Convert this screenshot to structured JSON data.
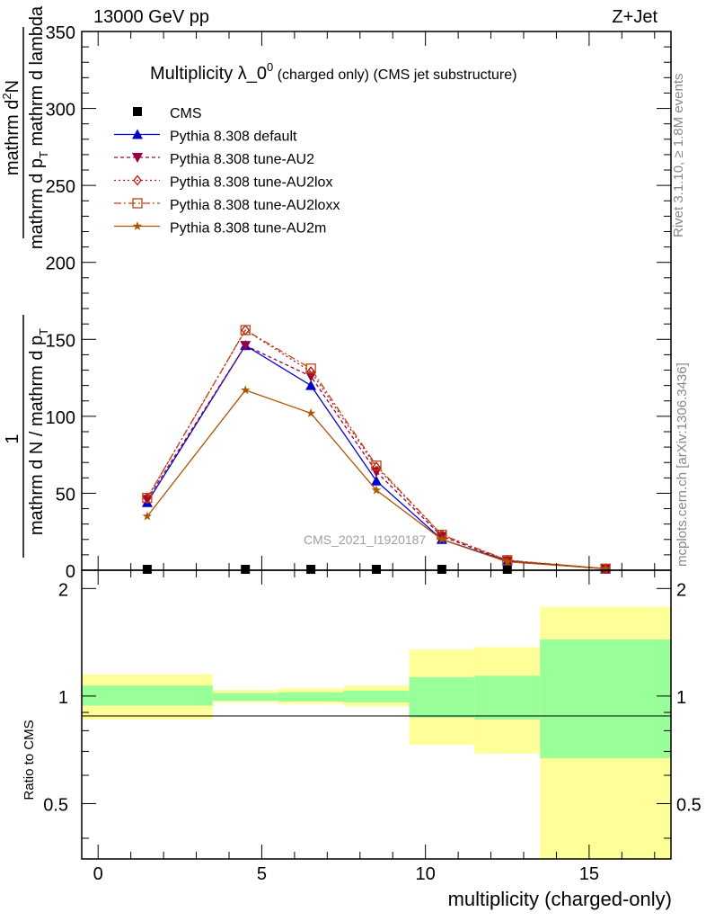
{
  "header": {
    "left": "13000 GeV pp",
    "right": "Z+Jet"
  },
  "side_labels": {
    "rivet": "Rivet 3.1.10, ≥ 1.8M events",
    "mcplots": "mcplots.cern.ch [arXiv:1306.3436]"
  },
  "watermark": "CMS_2021_I1920187",
  "colors": {
    "cms": "#000000",
    "default": "#0000cc",
    "au2": "#990044",
    "au2lox": "#bb1111",
    "au2loxx": "#bb4411",
    "au2m": "#aa5500",
    "band_inner": "#99ff99",
    "band_outer": "#ffff99"
  },
  "chart_data": [
    {
      "type": "line",
      "title_main": "Multiplicity λ_0",
      "title_sup": "0",
      "title_rest": " (charged only) (CMS jet substructure)",
      "ylabel_top": "1",
      "ylabel_num": "mathrm d",
      "ylabel_num_sup": "2",
      "ylabel_num_rest": "N",
      "ylabel_den": "mathrm d p",
      "ylabel_den_sub": "T",
      "ylabel_den_rest": " mathrm d lambda",
      "ylabel_bottom": "mathrm d N / mathrm d p",
      "ylabel_bottom_sub": "T",
      "ylim": [
        0,
        350
      ],
      "yticks": [
        "0",
        "50",
        "100",
        "150",
        "200",
        "250",
        "300",
        "350"
      ],
      "x": [
        1.5,
        4.5,
        6.5,
        8.5,
        10.5,
        12.5,
        15.5
      ],
      "series": [
        {
          "name": "CMS",
          "key": "cms",
          "marker": "square",
          "dash": "",
          "values": [
            0.4,
            0.4,
            0.4,
            0.4,
            0.4,
            0.4,
            0.2
          ]
        },
        {
          "name": "Pythia 8.308 default",
          "key": "default",
          "marker": "triangle-up",
          "dash": "",
          "values": [
            44,
            146,
            120,
            58,
            20,
            6,
            1
          ]
        },
        {
          "name": "Pythia 8.308 tune-AU2",
          "key": "au2",
          "marker": "triangle-down",
          "dash": "4,3",
          "values": [
            46,
            146,
            126,
            64,
            22,
            6,
            1
          ]
        },
        {
          "name": "Pythia 8.308 tune-AU2lox",
          "key": "au2lox",
          "marker": "diamond",
          "dash": "2,3",
          "values": [
            47,
            156,
            129,
            67,
            23,
            6.5,
            1
          ]
        },
        {
          "name": "Pythia 8.308 tune-AU2loxx",
          "key": "au2loxx",
          "marker": "square-open",
          "dash": "8,3,2,3",
          "values": [
            47,
            156,
            131,
            68,
            23,
            6.5,
            1
          ]
        },
        {
          "name": "Pythia 8.308 tune-AU2m",
          "key": "au2m",
          "marker": "star",
          "dash": "",
          "values": [
            35,
            117,
            102,
            52,
            20,
            5.5,
            1
          ]
        }
      ]
    },
    {
      "type": "area",
      "ylabel": "Ratio to CMS",
      "xlabel": "multiplicity (charged-only)",
      "ylim": [
        0.35,
        2.25
      ],
      "xlim": [
        -0.5,
        17.5
      ],
      "xticks": [
        "0",
        "5",
        "10",
        "15"
      ],
      "yticks": [
        "0.5",
        "1",
        "2"
      ],
      "bins": [
        {
          "lo": -0.5,
          "hi": 3.5,
          "inner": [
            0.94,
            1.07
          ],
          "outer": [
            0.86,
            1.15
          ]
        },
        {
          "lo": 3.5,
          "hi": 5.5,
          "inner": [
            0.97,
            1.02
          ],
          "outer": [
            0.96,
            1.04
          ]
        },
        {
          "lo": 5.5,
          "hi": 7.5,
          "inner": [
            0.965,
            1.025
          ],
          "outer": [
            0.95,
            1.05
          ]
        },
        {
          "lo": 7.5,
          "hi": 9.5,
          "inner": [
            0.96,
            1.035
          ],
          "outer": [
            0.935,
            1.07
          ]
        },
        {
          "lo": 9.5,
          "hi": 11.5,
          "inner": [
            0.87,
            1.13
          ],
          "outer": [
            0.73,
            1.35
          ]
        },
        {
          "lo": 11.5,
          "hi": 13.5,
          "inner": [
            0.86,
            1.14
          ],
          "outer": [
            0.69,
            1.37
          ]
        },
        {
          "lo": 13.5,
          "hi": 17.5,
          "inner": [
            0.67,
            1.44
          ],
          "outer": [
            0.35,
            1.78
          ]
        }
      ]
    }
  ]
}
